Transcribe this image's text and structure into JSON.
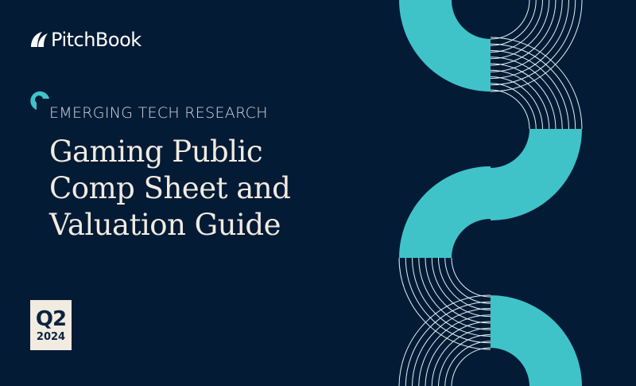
{
  "colors": {
    "background": "#041b36",
    "accent_teal": "#3fc3c9",
    "title_cream": "#f1ebe0",
    "line_white": "#dff3f2",
    "kicker_grey": "#d4d8de",
    "badge_bg": "#f1ebe0",
    "badge_text": "#0b2240"
  },
  "brand": {
    "logo_icon": "leaf-icon",
    "logo_text": "PitchBook"
  },
  "kicker": {
    "icon": "open-ring-icon",
    "label": "EMERGING TECH RESEARCH"
  },
  "title": {
    "lines": [
      "Gaming Public",
      "Comp Sheet and",
      "Valuation Guide"
    ]
  },
  "badge": {
    "quarter": "Q2",
    "year": "2024"
  }
}
